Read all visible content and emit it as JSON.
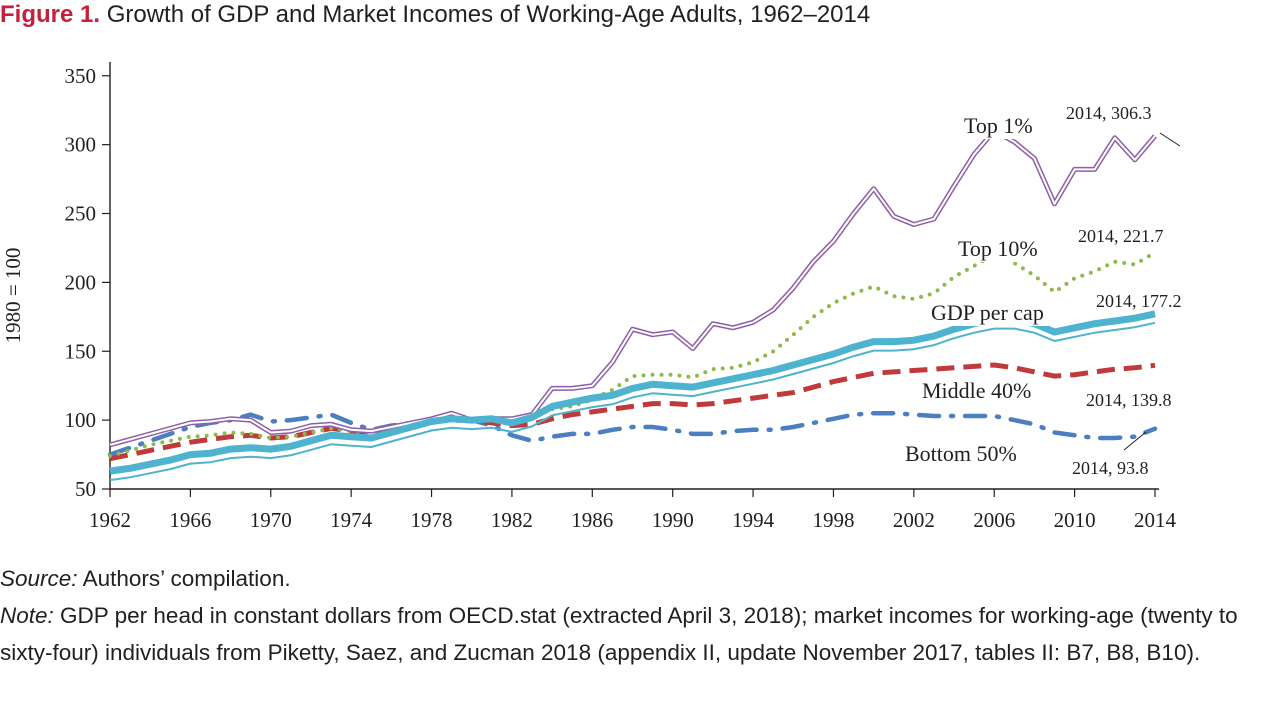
{
  "figure": {
    "label": "Figure 1.",
    "title": "Growth of GDP and Market Incomes of Working-Age Adults, 1962–2014"
  },
  "source": {
    "label": "Source:",
    "text": "Authors’ compilation."
  },
  "note": {
    "label": "Note:",
    "text": "GDP per head in constant dollars from OECD.stat (extracted April 3, 2018); market incomes for working-age (twenty to sixty-four) individuals from Piketty, Saez, and Zucman 2018 (appendix II, update November 2017, tables II: B7, B8, B10)."
  },
  "chart_data": {
    "type": "line",
    "title": "",
    "xlabel": "",
    "ylabel": "1980 = 100",
    "xlim": [
      1962,
      2014
    ],
    "ylim": [
      50,
      360
    ],
    "yticks": [
      50,
      100,
      150,
      200,
      250,
      300,
      350
    ],
    "xticks": [
      1962,
      1966,
      1970,
      1974,
      1978,
      1982,
      1986,
      1990,
      1994,
      1998,
      2002,
      2006,
      2010,
      2014
    ],
    "grid": false,
    "x": [
      1962,
      1963,
      1964,
      1965,
      1966,
      1967,
      1968,
      1969,
      1970,
      1971,
      1972,
      1973,
      1974,
      1975,
      1976,
      1977,
      1978,
      1979,
      1980,
      1981,
      1982,
      1983,
      1984,
      1985,
      1986,
      1987,
      1988,
      1989,
      1990,
      1991,
      1992,
      1993,
      1994,
      1995,
      1996,
      1997,
      1998,
      1999,
      2000,
      2001,
      2002,
      2003,
      2004,
      2005,
      2006,
      2007,
      2008,
      2009,
      2010,
      2011,
      2012,
      2013,
      2014
    ],
    "series": [
      {
        "name": "Top 1%",
        "color": "#8e5fa8",
        "style": "double",
        "values": [
          82,
          86,
          90,
          94,
          98,
          99,
          101,
          100,
          91,
          92,
          96,
          97,
          93,
          92,
          95,
          98,
          101,
          105,
          100,
          101,
          101,
          104,
          123,
          123,
          125,
          142,
          166,
          162,
          164,
          152,
          170,
          167,
          171,
          180,
          196,
          215,
          230,
          250,
          268,
          248,
          242,
          246,
          270,
          293,
          310,
          302,
          290,
          257,
          282,
          282,
          305,
          289,
          306.3
        ],
        "label": "Top 1%",
        "end_label": "2014, 306.3"
      },
      {
        "name": "Top 10%",
        "color": "#8dbb4a",
        "style": "dotted",
        "values": [
          74,
          78,
          82,
          85,
          88,
          89,
          91,
          90,
          87,
          88,
          91,
          94,
          92,
          91,
          95,
          98,
          100,
          101,
          100,
          100,
          99,
          102,
          108,
          110,
          115,
          122,
          132,
          133,
          133,
          131,
          137,
          138,
          142,
          150,
          162,
          175,
          185,
          192,
          197,
          190,
          188,
          192,
          204,
          212,
          220,
          214,
          205,
          193,
          203,
          208,
          215,
          213,
          221.7
        ],
        "label": "Top 10%",
        "end_label": "2014, 221.7"
      },
      {
        "name": "GDP per cap",
        "color": "#4db3cf",
        "style": "thick-double",
        "values": [
          63,
          65,
          68,
          71,
          75,
          76,
          79,
          80,
          79,
          81,
          85,
          89,
          88,
          87,
          91,
          95,
          99,
          101,
          100,
          101,
          98,
          102,
          110,
          113,
          116,
          118,
          123,
          126,
          125,
          124,
          127,
          130,
          133,
          136,
          140,
          144,
          148,
          153,
          157,
          157,
          158,
          161,
          166,
          170,
          173,
          173,
          170,
          164,
          167,
          170,
          172,
          174,
          177.2
        ],
        "label": "GDP per cap",
        "end_label": "2014, 177.2"
      },
      {
        "name": "Middle 40%",
        "color": "#c0393b",
        "style": "dashed",
        "values": [
          72,
          75,
          78,
          81,
          84,
          86,
          88,
          89,
          87,
          88,
          91,
          94,
          92,
          90,
          94,
          97,
          99,
          100,
          100,
          98,
          96,
          97,
          101,
          104,
          106,
          108,
          110,
          112,
          112,
          111,
          112,
          114,
          116,
          118,
          120,
          124,
          128,
          131,
          134,
          135,
          136,
          137,
          138,
          139,
          140,
          138,
          135,
          132,
          133,
          135,
          137,
          138,
          139.8
        ],
        "label": "Middle 40%",
        "end_label": "2014, 139.8"
      },
      {
        "name": "Bottom 50%",
        "color": "#4b7fc1",
        "style": "dashdot",
        "values": [
          75,
          80,
          85,
          90,
          95,
          98,
          100,
          104,
          99,
          100,
          102,
          104,
          98,
          93,
          96,
          98,
          101,
          102,
          100,
          96,
          89,
          85,
          88,
          90,
          90,
          93,
          95,
          95,
          93,
          90,
          90,
          92,
          93,
          93,
          95,
          98,
          101,
          104,
          105,
          105,
          104,
          103,
          103,
          103,
          103,
          100,
          97,
          91,
          89,
          87,
          87,
          88,
          93.8
        ],
        "label": "Bottom 50%",
        "end_label": "2014, 93.8"
      }
    ]
  }
}
